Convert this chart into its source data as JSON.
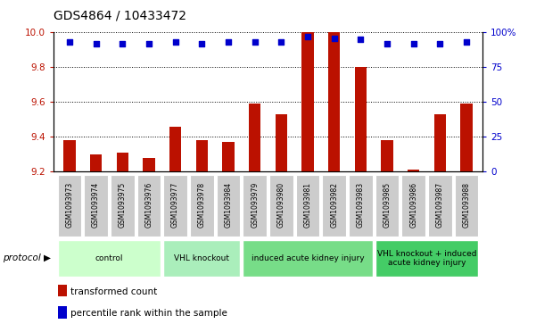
{
  "title": "GDS4864 / 10433472",
  "samples": [
    "GSM1093973",
    "GSM1093974",
    "GSM1093975",
    "GSM1093976",
    "GSM1093977",
    "GSM1093978",
    "GSM1093984",
    "GSM1093979",
    "GSM1093980",
    "GSM1093981",
    "GSM1093982",
    "GSM1093983",
    "GSM1093985",
    "GSM1093986",
    "GSM1093987",
    "GSM1093988"
  ],
  "transformed_count": [
    9.38,
    9.3,
    9.31,
    9.28,
    9.46,
    9.38,
    9.37,
    9.59,
    9.53,
    10.0,
    10.0,
    9.8,
    9.38,
    9.21,
    9.53,
    9.59
  ],
  "percentile_rank": [
    93,
    92,
    92,
    92,
    93,
    92,
    93,
    93,
    93,
    97,
    96,
    95,
    92,
    92,
    92,
    93
  ],
  "bar_color": "#bb1100",
  "dot_color": "#0000cc",
  "ylim_left": [
    9.2,
    10.0
  ],
  "ylim_right": [
    0,
    100
  ],
  "yticks_left": [
    9.2,
    9.4,
    9.6,
    9.8,
    10.0
  ],
  "yticks_right": [
    0,
    25,
    50,
    75,
    100
  ],
  "grid_values": [
    9.4,
    9.6,
    9.8,
    10.0
  ],
  "protocols": [
    {
      "label": "control",
      "start": 0,
      "end": 3,
      "color": "#ccffcc"
    },
    {
      "label": "VHL knockout",
      "start": 4,
      "end": 6,
      "color": "#aaeebb"
    },
    {
      "label": "induced acute kidney injury",
      "start": 7,
      "end": 11,
      "color": "#77dd88"
    },
    {
      "label": "VHL knockout + induced\nacute kidney injury",
      "start": 12,
      "end": 15,
      "color": "#44cc66"
    }
  ],
  "protocol_label": "protocol",
  "legend_items": [
    {
      "label": "transformed count",
      "color": "#bb1100"
    },
    {
      "label": "percentile rank within the sample",
      "color": "#0000cc"
    }
  ],
  "bar_bottom": 9.2,
  "ticklabel_bg": "#cccccc",
  "title_fontsize": 10,
  "bar_width": 0.45
}
